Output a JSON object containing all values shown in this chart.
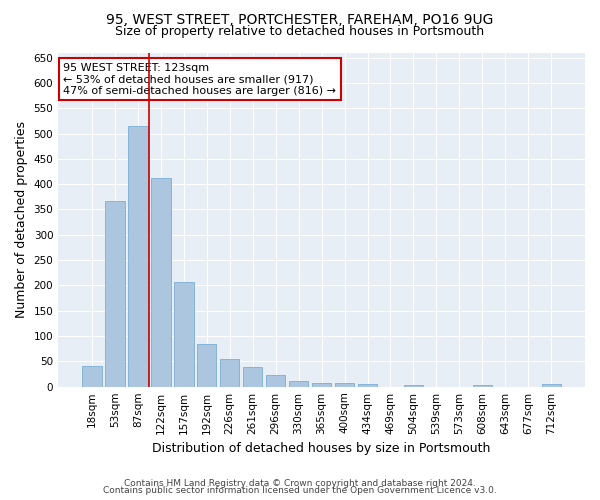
{
  "title1": "95, WEST STREET, PORTCHESTER, FAREHAM, PO16 9UG",
  "title2": "Size of property relative to detached houses in Portsmouth",
  "xlabel": "Distribution of detached houses by size in Portsmouth",
  "ylabel": "Number of detached properties",
  "categories": [
    "18sqm",
    "53sqm",
    "87sqm",
    "122sqm",
    "157sqm",
    "192sqm",
    "226sqm",
    "261sqm",
    "296sqm",
    "330sqm",
    "365sqm",
    "400sqm",
    "434sqm",
    "469sqm",
    "504sqm",
    "539sqm",
    "573sqm",
    "608sqm",
    "643sqm",
    "677sqm",
    "712sqm"
  ],
  "values": [
    40,
    367,
    515,
    413,
    207,
    85,
    55,
    38,
    23,
    11,
    7,
    7,
    6,
    0,
    3,
    0,
    0,
    4,
    0,
    0,
    5
  ],
  "bar_color": "#adc6e0",
  "bar_edge_color": "#7aafd4",
  "vline_color": "#cc0000",
  "vline_x": 2.5,
  "annotation_text": "95 WEST STREET: 123sqm\n← 53% of detached houses are smaller (917)\n47% of semi-detached houses are larger (816) →",
  "annotation_box_color": "#ffffff",
  "annotation_box_edge": "#cc0000",
  "ylim": [
    0,
    660
  ],
  "yticks": [
    0,
    50,
    100,
    150,
    200,
    250,
    300,
    350,
    400,
    450,
    500,
    550,
    600,
    650
  ],
  "background_color": "#e8eef5",
  "footer1": "Contains HM Land Registry data © Crown copyright and database right 2024.",
  "footer2": "Contains public sector information licensed under the Open Government Licence v3.0.",
  "title_fontsize": 10,
  "subtitle_fontsize": 9,
  "ylabel_fontsize": 9,
  "xlabel_fontsize": 9,
  "tick_fontsize": 7.5,
  "annotation_fontsize": 8,
  "footer_fontsize": 6.5
}
